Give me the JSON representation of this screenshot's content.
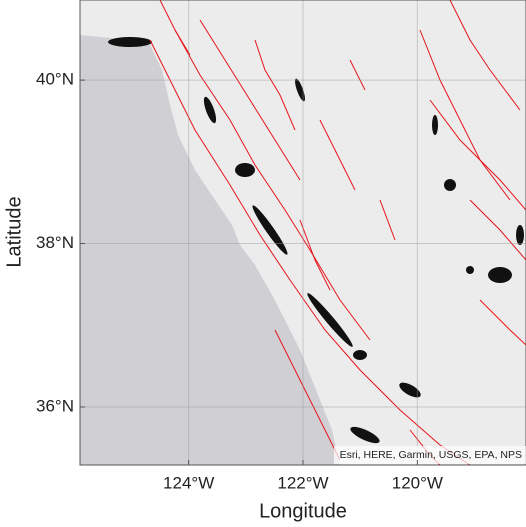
{
  "chart_data": {
    "type": "map",
    "xlabel": "Longitude",
    "ylabel": "Latitude",
    "xlim": [
      -125.9,
      -118.1
    ],
    "ylim": [
      35.29,
      40.98
    ],
    "xticks": [
      {
        "value": -124,
        "label": "124°W"
      },
      {
        "value": -122,
        "label": "122°W"
      },
      {
        "value": -120,
        "label": "120°W"
      }
    ],
    "yticks": [
      {
        "value": 36,
        "label": "36°N"
      },
      {
        "value": 38,
        "label": "38°N"
      },
      {
        "value": 40,
        "label": "40°N"
      }
    ],
    "grid": true,
    "attribution": "Esri, HERE, Garmin, USGS, EPA, NPS"
  }
}
